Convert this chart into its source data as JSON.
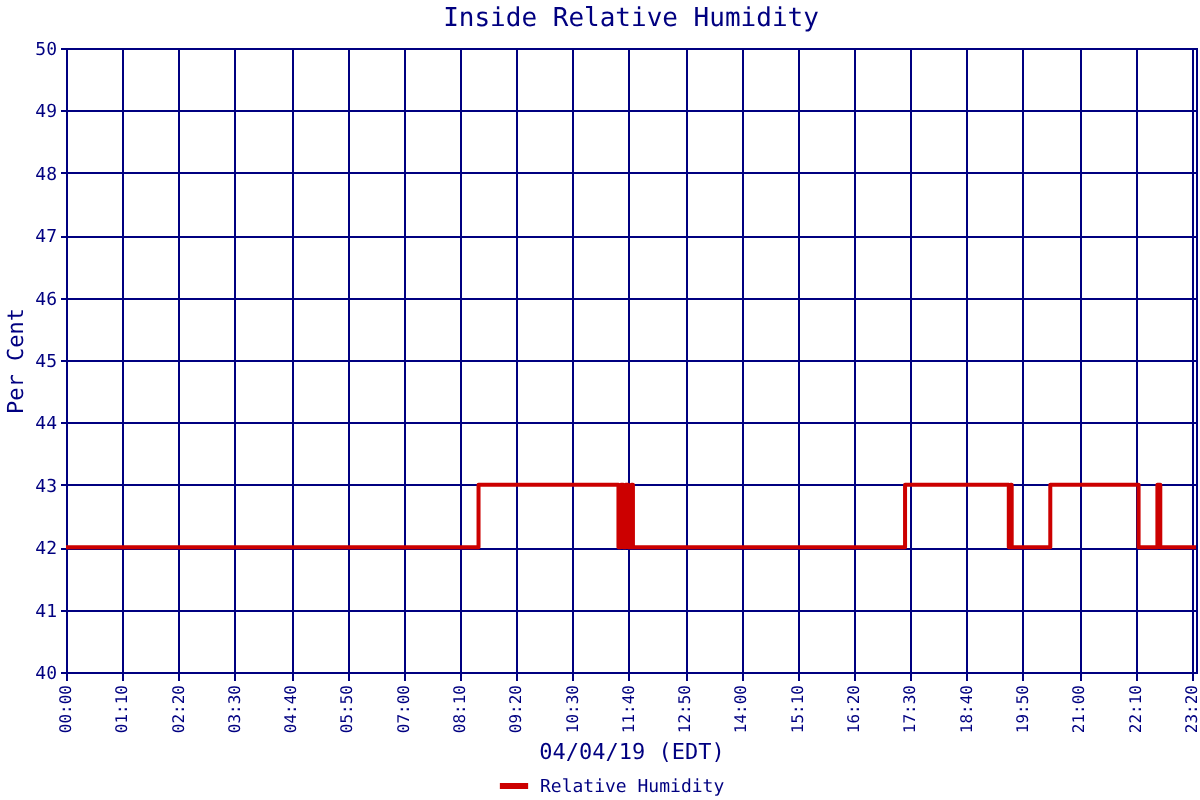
{
  "chart_data": {
    "type": "step",
    "title": "Inside Relative Humidity",
    "xlabel": "04/04/19 (EDT)",
    "ylabel": "Per Cent",
    "x": [
      0,
      8.55,
      11.45,
      11.5,
      11.55,
      11.6,
      11.65,
      11.72,
      11.75,
      17.39,
      19.54,
      19.58,
      19.6,
      20.4,
      22.23,
      22.62,
      22.68,
      23.42
    ],
    "series": [
      {
        "name": "Relative Humidity",
        "color": "#cc0000",
        "values": [
          42,
          43,
          42,
          43,
          42,
          43,
          42,
          43,
          42,
          43,
          42,
          43,
          42,
          43,
          42,
          43,
          42,
          42
        ]
      }
    ],
    "xlim": [
      0,
      23.42
    ],
    "ylim": [
      40,
      50
    ],
    "xticks": [
      {
        "value": 0,
        "label": "00:00"
      },
      {
        "value": 1.1667,
        "label": "01:10"
      },
      {
        "value": 2.3333,
        "label": "02:20"
      },
      {
        "value": 3.5,
        "label": "03:30"
      },
      {
        "value": 4.6667,
        "label": "04:40"
      },
      {
        "value": 5.8333,
        "label": "05:50"
      },
      {
        "value": 7,
        "label": "07:00"
      },
      {
        "value": 8.1667,
        "label": "08:10"
      },
      {
        "value": 9.3333,
        "label": "09:20"
      },
      {
        "value": 10.5,
        "label": "10:30"
      },
      {
        "value": 11.6667,
        "label": "11:40"
      },
      {
        "value": 12.8333,
        "label": "12:50"
      },
      {
        "value": 14,
        "label": "14:00"
      },
      {
        "value": 15.1667,
        "label": "15:10"
      },
      {
        "value": 16.3333,
        "label": "16:20"
      },
      {
        "value": 17.5,
        "label": "17:30"
      },
      {
        "value": 18.6667,
        "label": "18:40"
      },
      {
        "value": 19.8333,
        "label": "19:50"
      },
      {
        "value": 21,
        "label": "21:00"
      },
      {
        "value": 22.1667,
        "label": "22:10"
      },
      {
        "value": 23.3333,
        "label": "23:20"
      }
    ],
    "yticks": [
      40,
      41,
      42,
      43,
      44,
      45,
      46,
      47,
      48,
      49,
      50
    ],
    "grid": true,
    "legend": "bottom",
    "marker": "none",
    "line_style": "solid"
  }
}
